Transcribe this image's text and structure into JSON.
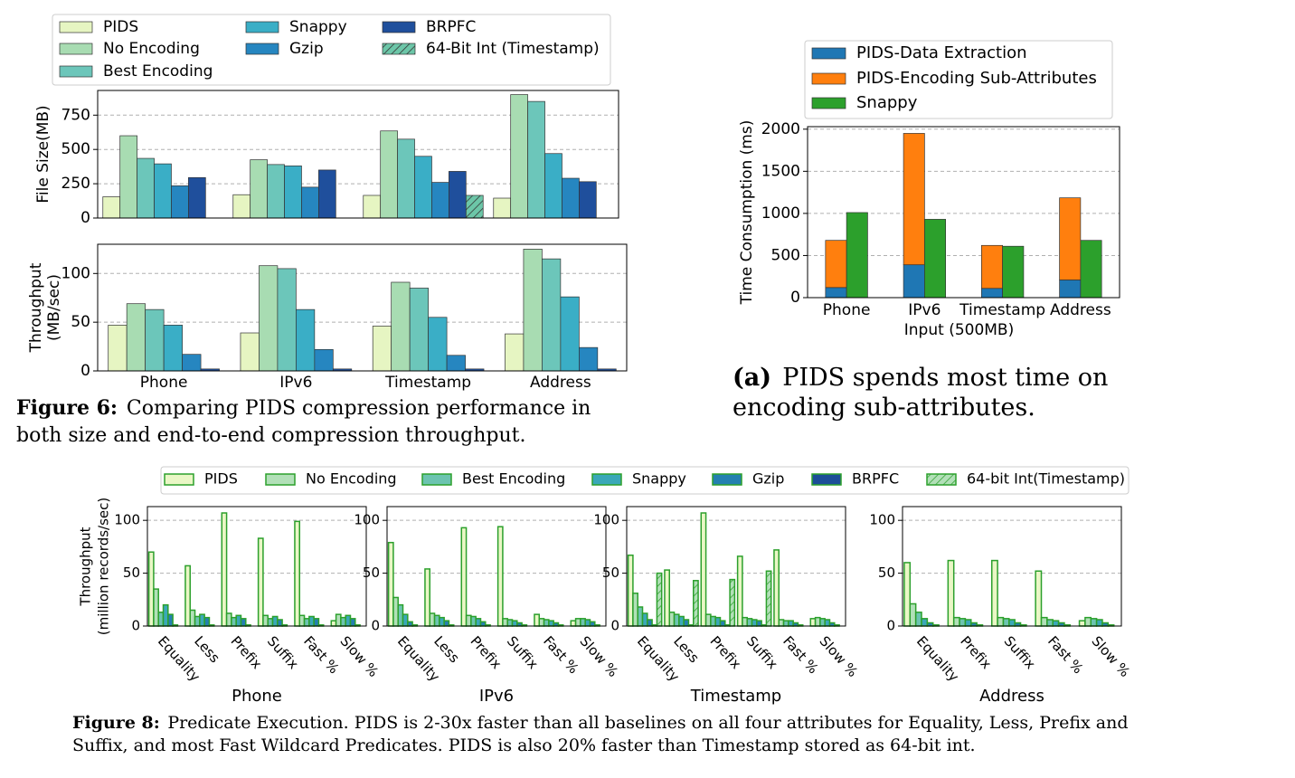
{
  "chart_data": [
    {
      "type": "bar",
      "ylabel": "File Size(MB)",
      "categories": [
        null,
        null,
        null,
        null
      ],
      "ylim": [
        0,
        930
      ],
      "yticks": [
        0,
        250,
        500,
        750
      ],
      "grid": true,
      "edgecolor": "#333333",
      "series": [
        {
          "name": "PIDS",
          "color": "#e6f5c2",
          "values": [
            155,
            170,
            165,
            145
          ]
        },
        {
          "name": "No Encoding",
          "color": "#a8dcb2",
          "values": [
            600,
            425,
            635,
            900
          ]
        },
        {
          "name": "Best Encoding",
          "color": "#6cc6ba",
          "values": [
            435,
            390,
            575,
            850
          ]
        },
        {
          "name": "Snappy",
          "color": "#3aaec6",
          "values": [
            395,
            380,
            450,
            470
          ]
        },
        {
          "name": "Gzip",
          "color": "#2686c0",
          "values": [
            235,
            225,
            260,
            290
          ]
        },
        {
          "name": "BRPFC",
          "color": "#1f4f9c",
          "values": [
            295,
            350,
            340,
            265
          ]
        },
        {
          "name": "64-Bit Int (Timestamp)",
          "color": "#6cc6a8",
          "hatch": true,
          "values": [
            null,
            null,
            165,
            null
          ]
        }
      ]
    },
    {
      "type": "bar",
      "ylabel": [
        "Throughput",
        "(MB/sec)"
      ],
      "categories": [
        "Phone",
        "IPv6",
        "Timestamp",
        "Address"
      ],
      "ylim": [
        0,
        130
      ],
      "yticks": [
        0,
        50,
        100
      ],
      "grid": true,
      "edgecolor": "#333333",
      "series": [
        {
          "color": "#e6f5c2",
          "values": [
            47,
            39,
            46,
            38
          ]
        },
        {
          "color": "#a8dcb2",
          "values": [
            69,
            108,
            91,
            125
          ]
        },
        {
          "color": "#6cc6ba",
          "values": [
            63,
            105,
            85,
            115
          ]
        },
        {
          "color": "#3aaec6",
          "values": [
            47,
            63,
            55,
            76
          ]
        },
        {
          "color": "#2686c0",
          "values": [
            17,
            22,
            16,
            24
          ]
        },
        {
          "color": "#1f4f9c",
          "values": [
            2,
            2,
            2,
            2
          ]
        }
      ],
      "caption": {
        "label": "Figure 6:",
        "lines": [
          "Comparing PIDS compression performance in",
          "both size and end-to-end compression throughput."
        ]
      }
    },
    {
      "type": "bar",
      "ylabel": "Time Consumption (ms)",
      "xlabel": "Input (500MB)",
      "categories": [
        "Phone",
        "IPv6",
        "Timestamp",
        "Address"
      ],
      "ylim": [
        0,
        2030
      ],
      "yticks": [
        0,
        500,
        1000,
        1500,
        2000
      ],
      "grid": true,
      "edgecolor": "#333333",
      "series": [
        {
          "name": "PIDS-Data Extraction",
          "color": "#1f77b4",
          "stacked": true,
          "values": [
            120,
            390,
            110,
            210
          ]
        },
        {
          "name": "PIDS-Encoding Sub-Attributes",
          "color": "#ff7f0e",
          "stacked": true,
          "values": [
            560,
            1560,
            510,
            975
          ]
        },
        {
          "name": "Snappy",
          "color": "#2ca02c",
          "values": [
            1010,
            930,
            610,
            680
          ]
        }
      ],
      "caption": {
        "label": "(a)",
        "lines": [
          "PIDS spends most time on",
          "encoding sub-attributes."
        ]
      }
    },
    {
      "type": "bar",
      "title": "Phone",
      "ylabel": [
        "Throughput",
        "(million records/sec)"
      ],
      "categories": [
        "Equality",
        "Less",
        "Prefix",
        "Suffix",
        "Fast %",
        "Slow %"
      ],
      "ylim": [
        0,
        113
      ],
      "yticks": [
        0,
        50,
        100
      ],
      "grid": true,
      "edgecolor": "#2ca02c",
      "series": [
        {
          "name": "PIDS",
          "color": "#eaf7c6",
          "values": [
            70,
            57,
            107,
            83,
            99,
            5
          ]
        },
        {
          "name": "No Encoding",
          "color": "#b2e0b8",
          "values": [
            35,
            15,
            12,
            10,
            10,
            11
          ]
        },
        {
          "name": "Best Encoding",
          "color": "#6cc4b0",
          "values": [
            13,
            9,
            8,
            7,
            7,
            8
          ]
        },
        {
          "name": "Snappy",
          "color": "#3aa8b8",
          "values": [
            20,
            11,
            10,
            9,
            9,
            10
          ]
        },
        {
          "name": "Gzip",
          "color": "#2380b0",
          "values": [
            11,
            8,
            7,
            6,
            7,
            7
          ]
        },
        {
          "name": "BRPFC",
          "color": "#1c4e98",
          "values": [
            1,
            1,
            1,
            1,
            1,
            1
          ]
        },
        {
          "name": "64-bit Int(Timestamp)",
          "color": "#b2e0b8",
          "hatch": true,
          "values": [
            null,
            null,
            null,
            null,
            null,
            null
          ]
        }
      ]
    },
    {
      "type": "bar",
      "title": "IPv6",
      "categories": [
        "Equality",
        "Less",
        "Prefix",
        "Suffix",
        "Fast %",
        "Slow %"
      ],
      "ylim": [
        0,
        113
      ],
      "yticks": [
        0,
        50,
        100
      ],
      "grid": true,
      "edgecolor": "#2ca02c",
      "series": [
        {
          "color": "#eaf7c6",
          "values": [
            79,
            54,
            93,
            94,
            11,
            5
          ]
        },
        {
          "color": "#b2e0b8",
          "values": [
            27,
            12,
            10,
            7,
            7,
            7
          ]
        },
        {
          "color": "#6cc4b0",
          "values": [
            20,
            10,
            9,
            6,
            6,
            7
          ]
        },
        {
          "color": "#3aa8b8",
          "values": [
            11,
            8,
            7,
            5,
            5,
            6
          ]
        },
        {
          "color": "#2380b0",
          "values": [
            4,
            5,
            4,
            3,
            3,
            4
          ]
        },
        {
          "color": "#1c4e98",
          "values": [
            1,
            1,
            1,
            1,
            1,
            1
          ]
        },
        {
          "color": "#b2e0b8",
          "hatch": true,
          "values": [
            null,
            null,
            null,
            null,
            null,
            null
          ]
        }
      ]
    },
    {
      "type": "bar",
      "title": "Timestamp",
      "categories": [
        "Equality",
        "Less",
        "Prefix",
        "Suffix",
        "Fast %",
        "Slow %"
      ],
      "ylim": [
        0,
        113
      ],
      "yticks": [
        0,
        50,
        100
      ],
      "grid": true,
      "edgecolor": "#2ca02c",
      "series": [
        {
          "color": "#eaf7c6",
          "values": [
            67,
            53,
            107,
            66,
            72,
            7
          ]
        },
        {
          "color": "#b2e0b8",
          "values": [
            31,
            13,
            11,
            8,
            6,
            8
          ]
        },
        {
          "color": "#6cc4b0",
          "values": [
            18,
            11,
            9,
            7,
            5,
            7
          ]
        },
        {
          "color": "#3aa8b8",
          "values": [
            12,
            9,
            8,
            6,
            5,
            6
          ]
        },
        {
          "color": "#2380b0",
          "values": [
            6,
            6,
            5,
            5,
            3,
            3
          ]
        },
        {
          "color": "#1c4e98",
          "values": [
            1,
            1,
            1,
            1,
            1,
            1
          ]
        },
        {
          "color": "#b2e0b8",
          "hatch": true,
          "values": [
            50,
            43,
            44,
            52,
            null,
            null
          ]
        }
      ]
    },
    {
      "type": "bar",
      "title": "Address",
      "categories": [
        "Equality",
        "Prefix",
        "Suffix",
        "Fast %",
        "Slow %"
      ],
      "ylim": [
        0,
        113
      ],
      "yticks": [
        0,
        50,
        100
      ],
      "grid": true,
      "edgecolor": "#2ca02c",
      "series": [
        {
          "color": "#eaf7c6",
          "values": [
            60,
            62,
            62,
            52,
            5
          ]
        },
        {
          "color": "#b2e0b8",
          "values": [
            21,
            8,
            8,
            8,
            8
          ]
        },
        {
          "color": "#6cc4b0",
          "values": [
            13,
            7,
            7,
            6,
            7
          ]
        },
        {
          "color": "#3aa8b8",
          "values": [
            7,
            6,
            6,
            5,
            6
          ]
        },
        {
          "color": "#2380b0",
          "values": [
            3,
            3,
            3,
            3,
            3
          ]
        },
        {
          "color": "#1c4e98",
          "values": [
            1,
            1,
            1,
            1,
            1
          ]
        },
        {
          "color": "#b2e0b8",
          "hatch": true,
          "values": [
            null,
            null,
            null,
            null,
            null
          ]
        }
      ],
      "caption": {
        "label": "Figure 8:",
        "lines": [
          "Predicate Execution. PIDS is 2-30x faster than all baselines on all four attributes for Equality, Less, Prefix and",
          "Suffix, and most Fast Wildcard Predicates. PIDS is also 20% faster than Timestamp stored as 64-bit int."
        ]
      }
    }
  ]
}
